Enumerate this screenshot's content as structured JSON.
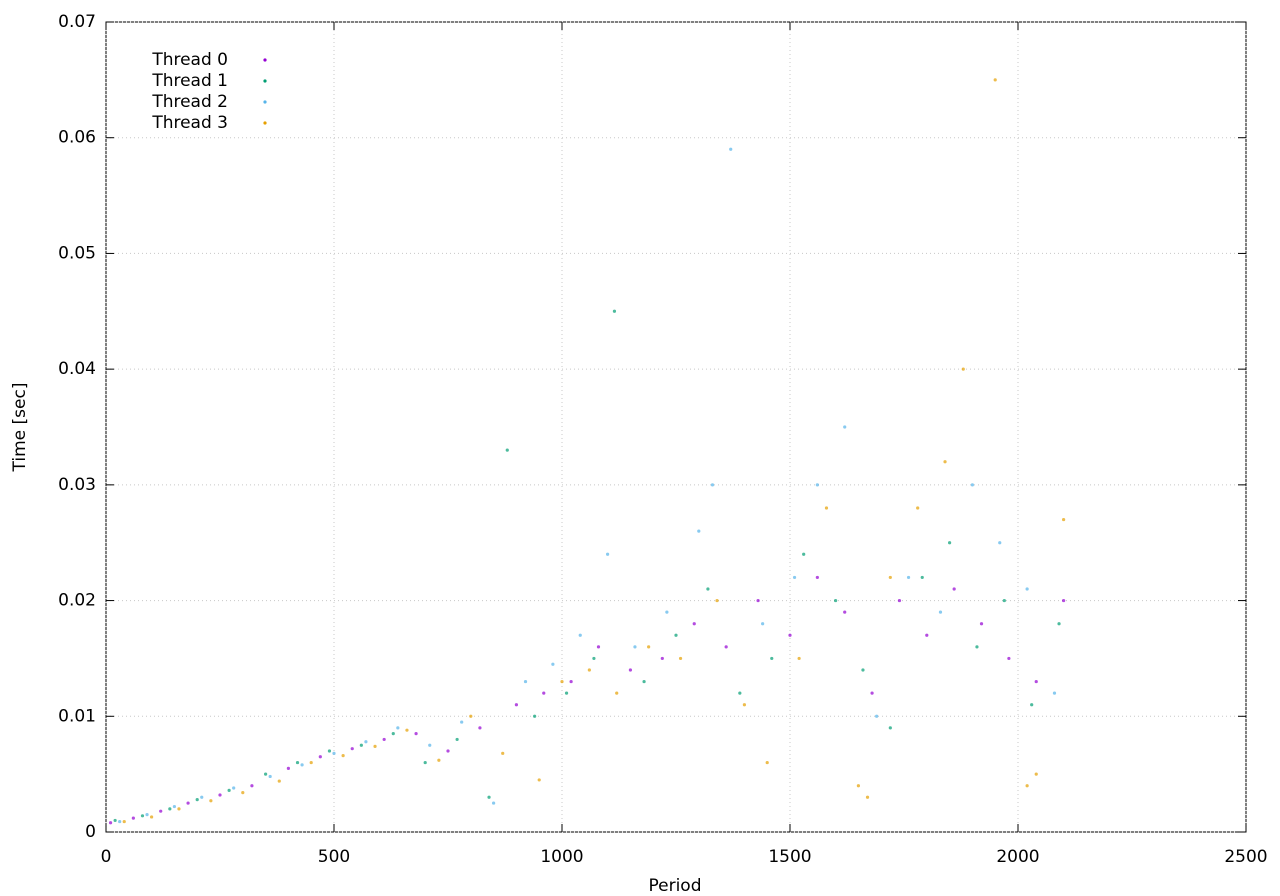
{
  "chart_data": {
    "type": "scatter",
    "x_label": "Period",
    "y_label": "Time [sec]",
    "xlim": [
      0,
      2500
    ],
    "xticks": [
      0,
      500,
      1000,
      1500,
      2000,
      2500
    ],
    "ylim": [
      0,
      0.07
    ],
    "yticks": [
      0,
      0.01,
      0.02,
      0.03,
      0.04,
      0.05,
      0.06,
      0.07
    ],
    "grid": true,
    "legend": "top-left",
    "series": [
      {
        "name": "Thread 0",
        "color": "#9400d3",
        "x": [
          10,
          60,
          120,
          180,
          250,
          320,
          400,
          470,
          540,
          610,
          680,
          750,
          820,
          900,
          960,
          1020,
          1080,
          1150,
          1220,
          1290,
          1360,
          1430,
          1500,
          1560,
          1620,
          1680,
          1740,
          1800,
          1860,
          1920,
          1980,
          2040,
          2100
        ],
        "values": [
          0.0008,
          0.0012,
          0.0018,
          0.0025,
          0.0032,
          0.004,
          0.0055,
          0.0065,
          0.0072,
          0.008,
          0.0085,
          0.007,
          0.009,
          0.011,
          0.012,
          0.013,
          0.016,
          0.014,
          0.015,
          0.018,
          0.016,
          0.02,
          0.017,
          0.022,
          0.019,
          0.012,
          0.02,
          0.017,
          0.021,
          0.018,
          0.015,
          0.013,
          0.02
        ]
      },
      {
        "name": "Thread 1",
        "color": "#009e73",
        "x": [
          20,
          80,
          140,
          200,
          270,
          350,
          420,
          490,
          560,
          630,
          700,
          770,
          840,
          880,
          940,
          1010,
          1070,
          1115,
          1180,
          1250,
          1320,
          1390,
          1460,
          1530,
          1600,
          1660,
          1720,
          1790,
          1850,
          1910,
          1970,
          2030,
          2090
        ],
        "values": [
          0.001,
          0.0014,
          0.002,
          0.0028,
          0.0036,
          0.005,
          0.006,
          0.007,
          0.0075,
          0.0085,
          0.006,
          0.008,
          0.003,
          0.033,
          0.01,
          0.012,
          0.015,
          0.045,
          0.013,
          0.017,
          0.021,
          0.012,
          0.015,
          0.024,
          0.02,
          0.014,
          0.009,
          0.022,
          0.025,
          0.016,
          0.02,
          0.011,
          0.018
        ]
      },
      {
        "name": "Thread 2",
        "color": "#56b4e9",
        "x": [
          30,
          90,
          150,
          210,
          280,
          360,
          430,
          500,
          570,
          640,
          710,
          780,
          850,
          920,
          980,
          1040,
          1100,
          1160,
          1230,
          1300,
          1330,
          1370,
          1440,
          1510,
          1560,
          1620,
          1690,
          1760,
          1830,
          1900,
          1960,
          2020,
          2080
        ],
        "values": [
          0.0009,
          0.0015,
          0.0022,
          0.003,
          0.0038,
          0.0048,
          0.0058,
          0.0068,
          0.0078,
          0.009,
          0.0075,
          0.0095,
          0.0025,
          0.013,
          0.0145,
          0.017,
          0.024,
          0.016,
          0.019,
          0.026,
          0.03,
          0.059,
          0.018,
          0.022,
          0.03,
          0.035,
          0.01,
          0.022,
          0.019,
          0.03,
          0.025,
          0.021,
          0.012
        ]
      },
      {
        "name": "Thread 3",
        "color": "#e69f00",
        "x": [
          40,
          100,
          160,
          230,
          300,
          380,
          450,
          520,
          590,
          660,
          730,
          800,
          870,
          950,
          1000,
          1060,
          1120,
          1190,
          1260,
          1340,
          1400,
          1450,
          1520,
          1580,
          1650,
          1670,
          1720,
          1780,
          1840,
          1880,
          1950,
          2020,
          2040,
          2100
        ],
        "values": [
          0.0009,
          0.0013,
          0.002,
          0.0027,
          0.0034,
          0.0044,
          0.006,
          0.0066,
          0.0074,
          0.0088,
          0.0062,
          0.01,
          0.0068,
          0.0045,
          0.013,
          0.014,
          0.012,
          0.016,
          0.015,
          0.02,
          0.011,
          0.006,
          0.015,
          0.028,
          0.004,
          0.003,
          0.022,
          0.028,
          0.032,
          0.04,
          0.065,
          0.004,
          0.005,
          0.027
        ]
      }
    ]
  }
}
